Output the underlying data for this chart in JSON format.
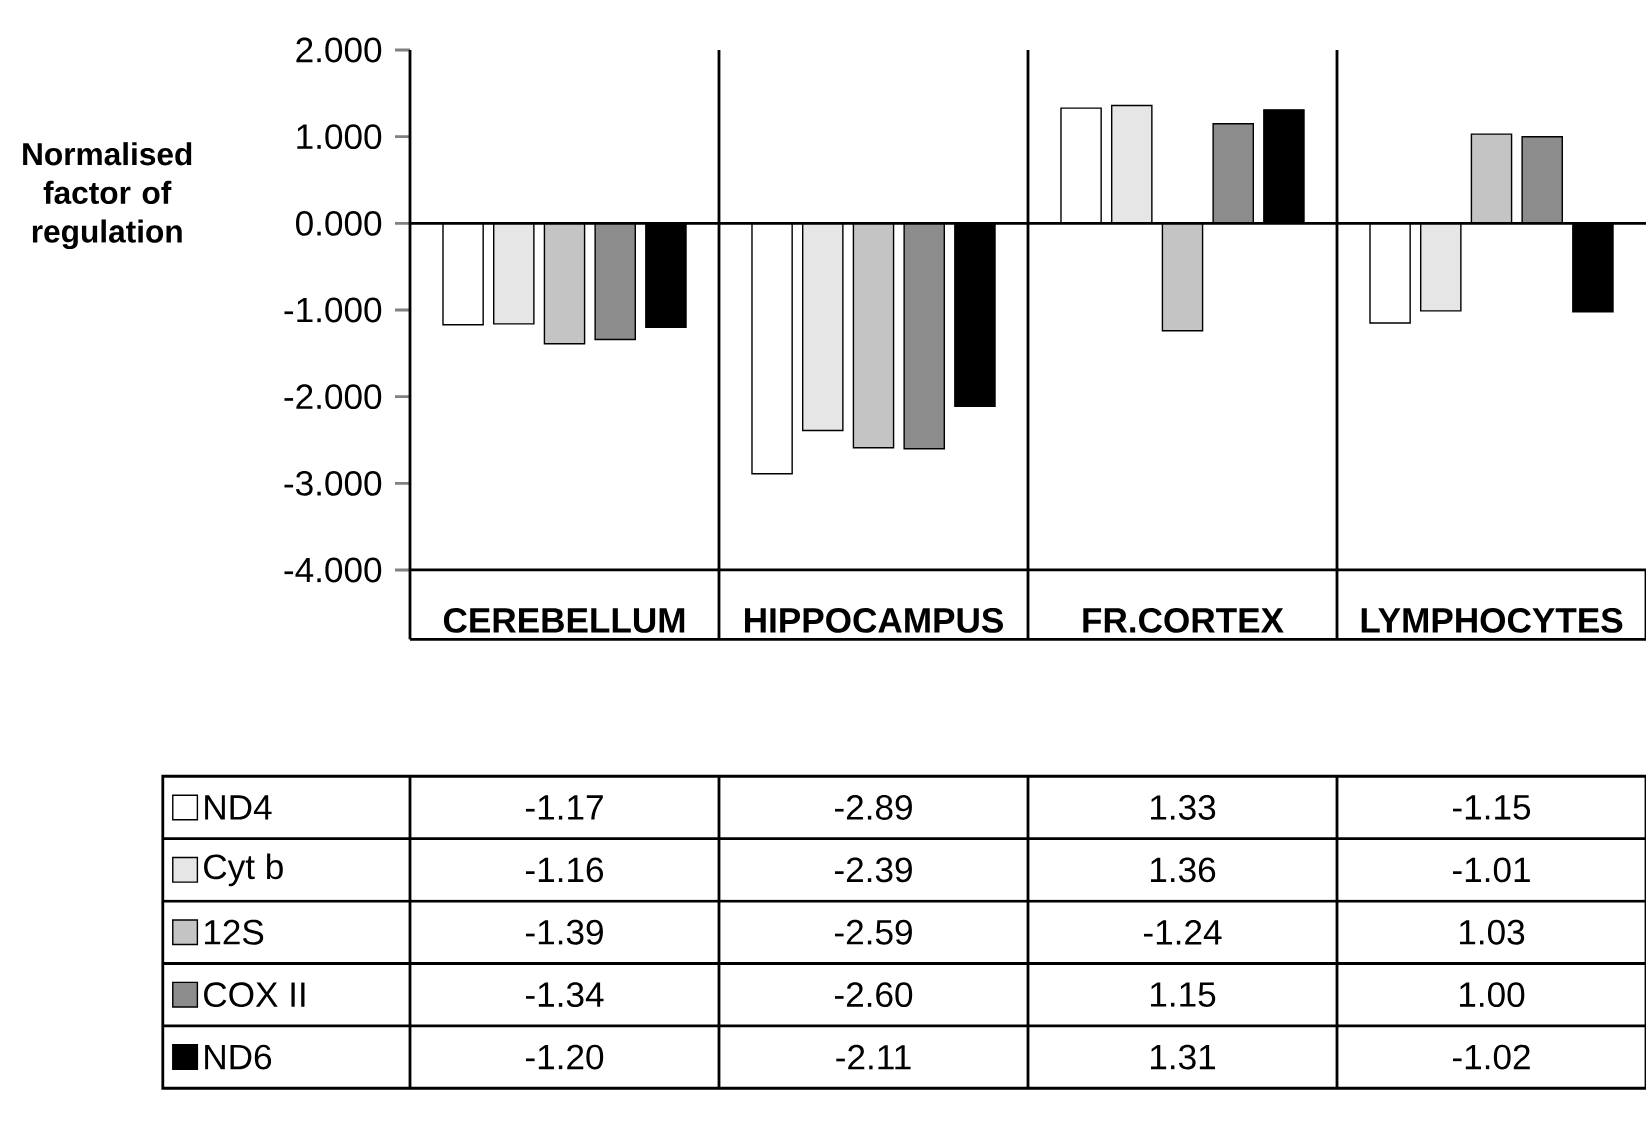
{
  "chart_data": {
    "type": "bar",
    "ylabel": "Normalised factor of regulation",
    "categories": [
      "CEREBELLUM",
      "HIPPOCAMPUS",
      "FR.CORTEX",
      "LYMPHOCYTES"
    ],
    "series": [
      {
        "name": "ND4",
        "color": "#ffffff",
        "values": [
          -1.17,
          -2.89,
          1.33,
          -1.15
        ],
        "value_labels": [
          "-1.17",
          "-2.89",
          "1.33",
          "-1.15"
        ]
      },
      {
        "name": "Cyt b",
        "color": "#e6e6e6",
        "values": [
          -1.16,
          -2.39,
          1.36,
          -1.01
        ],
        "value_labels": [
          "-1.16",
          "-2.39",
          "1.36",
          "-1.01"
        ]
      },
      {
        "name": "12S",
        "color": "#c4c4c4",
        "values": [
          -1.39,
          -2.59,
          -1.24,
          1.03
        ],
        "value_labels": [
          "-1.39",
          "-2.59",
          "-1.24",
          "1.03"
        ]
      },
      {
        "name": "COX II",
        "color": "#8c8c8c",
        "values": [
          -1.34,
          -2.6,
          1.15,
          1.0
        ],
        "value_labels": [
          "-1.34",
          "-2.60",
          "1.15",
          "1.00"
        ]
      },
      {
        "name": "ND6",
        "color": "#000000",
        "values": [
          -1.2,
          -2.11,
          1.31,
          -1.02
        ],
        "value_labels": [
          "-1.20",
          "-2.11",
          "1.31",
          "-1.02"
        ]
      }
    ],
    "ylim": [
      -4,
      2
    ],
    "yticks": [
      {
        "value": 2,
        "label": "2.000"
      },
      {
        "value": 1,
        "label": "1.000"
      },
      {
        "value": 0,
        "label": "0.000"
      },
      {
        "value": -1,
        "label": "-1.000"
      },
      {
        "value": -2,
        "label": "-2.000"
      },
      {
        "value": -3,
        "label": "-3.000"
      },
      {
        "value": -4,
        "label": "-4.000"
      }
    ],
    "legend": "bottom"
  }
}
